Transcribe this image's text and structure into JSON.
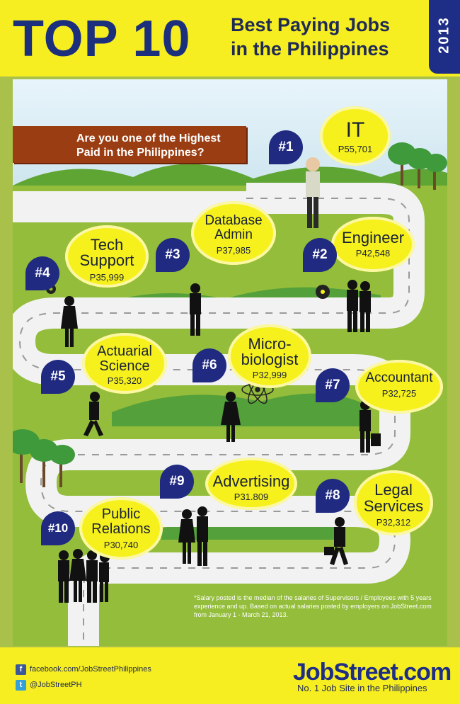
{
  "header": {
    "title": "TOP 10",
    "subtitle_line1": "Best Paying Jobs",
    "subtitle_line2": "in the Philippines",
    "year": "2013"
  },
  "banner": {
    "line1": "Are you one of the Highest",
    "line2": "Paid in the Philippines?"
  },
  "jobs": [
    {
      "rank": "#1",
      "title_line1": "IT",
      "title_line2": "",
      "salary": "P55,701"
    },
    {
      "rank": "#2",
      "title_line1": "Engineer",
      "title_line2": "",
      "salary": "P42,548"
    },
    {
      "rank": "#3",
      "title_line1": "Database",
      "title_line2": "Admin",
      "salary": "P37,985"
    },
    {
      "rank": "#4",
      "title_line1": "Tech",
      "title_line2": "Support",
      "salary": "P35,999"
    },
    {
      "rank": "#5",
      "title_line1": "Actuarial",
      "title_line2": "Science",
      "salary": "P35,320"
    },
    {
      "rank": "#6",
      "title_line1": "Micro-",
      "title_line2": "biologist",
      "salary": "P32,999"
    },
    {
      "rank": "#7",
      "title_line1": "Accountant",
      "title_line2": "",
      "salary": "P32,725"
    },
    {
      "rank": "#8",
      "title_line1": "Legal",
      "title_line2": "Services",
      "salary": "P32,312"
    },
    {
      "rank": "#9",
      "title_line1": "Advertising",
      "title_line2": "",
      "salary": "P31.809"
    },
    {
      "rank": "#10",
      "title_line1": "Public",
      "title_line2": "Relations",
      "salary": "P30,740"
    }
  ],
  "footnote": "*Salary posted is the median of the salaries of Supervisors / Employees with 5 years experience and up. Based on actual salaries posted by employers on JobStreet.com from January 1 - March 21, 2013.",
  "footer": {
    "facebook": "facebook.com/JobStreetPhilippines",
    "twitter": "@JobStreetPH",
    "brand": "JobStreet.com",
    "tagline": "No. 1 Job Site in the Philippines"
  },
  "colors": {
    "yellow": "#f6ee20",
    "navy": "#1e2d86",
    "grass": "#93bd3a",
    "banner": "#9b3d12",
    "bubble": "#f6f11d"
  }
}
